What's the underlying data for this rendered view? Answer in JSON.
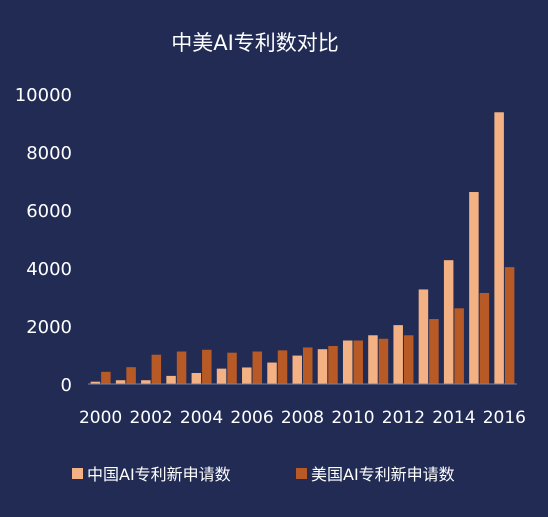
{
  "chart_data": {
    "type": "bar",
    "title": "中美AI专利数对比",
    "xlabel": "",
    "ylabel": "",
    "categories": [
      "2000",
      "2001",
      "2002",
      "2003",
      "2004",
      "2005",
      "2006",
      "2007",
      "2008",
      "2009",
      "2010",
      "2011",
      "2012",
      "2013",
      "2014",
      "2015",
      "2016"
    ],
    "x_tick_labels": [
      "2000",
      "2002",
      "2004",
      "2006",
      "2008",
      "2010",
      "2012",
      "2014",
      "2016"
    ],
    "y_ticks": [
      0,
      2000,
      4000,
      6000,
      8000,
      10000
    ],
    "ylim": [
      0,
      10000
    ],
    "grid": false,
    "legend_position": "bottom",
    "series": [
      {
        "name": "中国AI专利新申请数",
        "color": "#f4b183",
        "values": [
          80,
          130,
          130,
          280,
          380,
          530,
          570,
          740,
          980,
          1200,
          1500,
          1680,
          2030,
          3260,
          4270,
          6620,
          9370
        ]
      },
      {
        "name": "美国AI专利新申请数",
        "color": "#b85a25",
        "values": [
          420,
          580,
          1010,
          1120,
          1180,
          1080,
          1120,
          1160,
          1260,
          1310,
          1500,
          1560,
          1680,
          2240,
          2610,
          3140,
          4030
        ]
      }
    ]
  }
}
